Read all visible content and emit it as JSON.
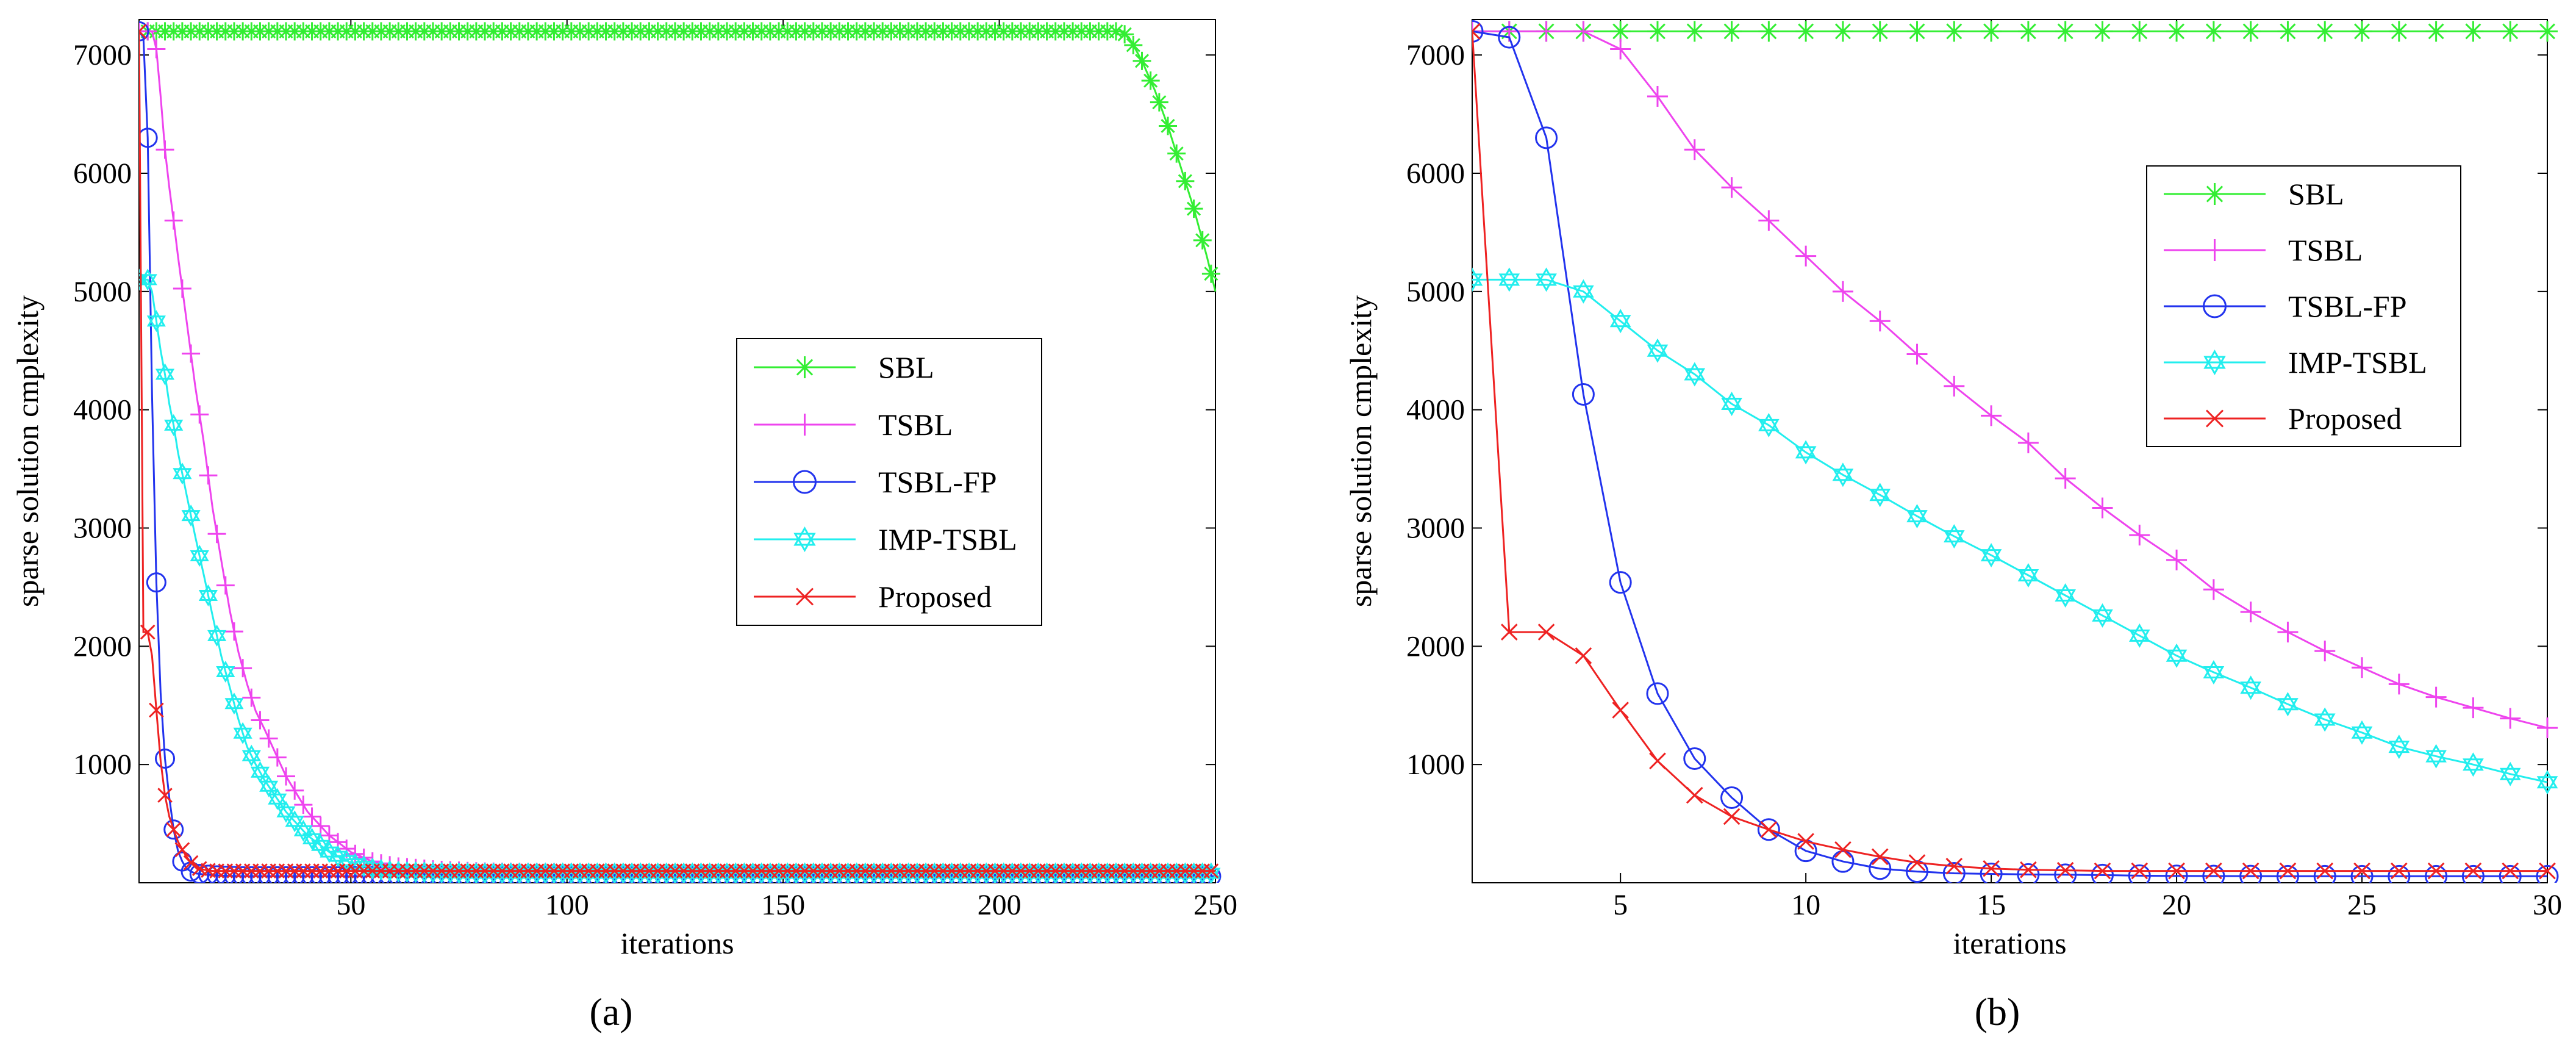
{
  "chart_data": [
    {
      "type": "line",
      "panel_label": "(a)",
      "xlabel": "iterations",
      "ylabel": "sparse solution cmplexity",
      "xlim": [
        1,
        250
      ],
      "ylim": [
        0,
        7300
      ],
      "xticks": [
        50,
        100,
        150,
        200,
        250
      ],
      "yticks": [
        1000,
        2000,
        3000,
        4000,
        5000,
        6000,
        7000
      ],
      "xtick_labels": [
        "50",
        "100",
        "150",
        "200",
        "250"
      ],
      "ytick_labels": [
        "1000",
        "2000",
        "3000",
        "4000",
        "5000",
        "6000",
        "7000"
      ],
      "legend_position": "center-right",
      "grid": false,
      "series": [
        {
          "name": "SBL",
          "color": "#33ee33",
          "marker": "asterisk",
          "x": [
            1,
            228,
            230,
            233,
            236,
            239,
            242,
            245,
            248,
            250
          ],
          "y": [
            7200,
            7200,
            7150,
            6950,
            6700,
            6400,
            6050,
            5700,
            5300,
            5000
          ]
        },
        {
          "name": "TSBL",
          "color": "#ee44ee",
          "marker": "plus",
          "x": [
            1,
            3,
            4,
            5,
            6,
            7,
            8,
            9,
            10,
            12,
            14,
            16,
            18,
            20,
            22,
            24,
            26,
            28,
            30,
            35,
            40,
            45,
            50,
            55,
            60,
            70,
            80,
            100,
            150,
            200,
            250
          ],
          "y": [
            7200,
            7200,
            7200,
            7050,
            6650,
            6200,
            5880,
            5600,
            5300,
            4750,
            4200,
            3720,
            3170,
            2730,
            2300,
            1950,
            1680,
            1450,
            1300,
            900,
            600,
            400,
            260,
            180,
            140,
            110,
            95,
            85,
            80,
            80,
            80
          ]
        },
        {
          "name": "TSBL-FP",
          "color": "#2233ee",
          "marker": "circle",
          "x": [
            1,
            2,
            3,
            4,
            5,
            6,
            7,
            8,
            9,
            10,
            11,
            12,
            13,
            14,
            15,
            16,
            18,
            20,
            25,
            30,
            40,
            50,
            100,
            150,
            200,
            250
          ],
          "y": [
            7200,
            7150,
            6300,
            4130,
            2540,
            1600,
            1050,
            720,
            450,
            270,
            180,
            120,
            95,
            80,
            75,
            70,
            65,
            60,
            55,
            55,
            55,
            55,
            55,
            55,
            55,
            55
          ]
        },
        {
          "name": "IMP-TSBL",
          "color": "#22eeee",
          "marker": "hexagram",
          "x": [
            1,
            2,
            3,
            4,
            5,
            6,
            7,
            8,
            9,
            10,
            12,
            14,
            16,
            18,
            20,
            22,
            24,
            26,
            28,
            30,
            35,
            40,
            45,
            50,
            55,
            60,
            70,
            80,
            100,
            150,
            200,
            250
          ],
          "y": [
            5100,
            5100,
            5100,
            5000,
            4750,
            4500,
            4300,
            4050,
            3870,
            3640,
            3280,
            2930,
            2600,
            2260,
            1920,
            1650,
            1380,
            1150,
            1000,
            870,
            600,
            400,
            260,
            170,
            120,
            95,
            85,
            80,
            80,
            80,
            80,
            80
          ]
        },
        {
          "name": "Proposed",
          "color": "#ee2222",
          "marker": "x",
          "x": [
            1,
            2,
            3,
            4,
            5,
            6,
            7,
            8,
            9,
            10,
            11,
            12,
            13,
            14,
            15,
            16,
            18,
            20,
            25,
            30,
            40,
            50,
            100,
            150,
            200,
            250
          ],
          "y": [
            7200,
            2120,
            2120,
            1920,
            1460,
            1030,
            740,
            560,
            450,
            350,
            280,
            220,
            170,
            140,
            120,
            110,
            100,
            100,
            100,
            100,
            100,
            100,
            100,
            100,
            100,
            100
          ]
        }
      ]
    },
    {
      "type": "line",
      "panel_label": "(b)",
      "xlabel": "iterations",
      "ylabel": "sparse solution cmplexity",
      "xlim": [
        1,
        30
      ],
      "ylim": [
        0,
        7300
      ],
      "xticks": [
        5,
        10,
        15,
        20,
        25,
        30
      ],
      "yticks": [
        1000,
        2000,
        3000,
        4000,
        5000,
        6000,
        7000
      ],
      "xtick_labels": [
        "5",
        "10",
        "15",
        "20",
        "25",
        "30"
      ],
      "ytick_labels": [
        "1000",
        "2000",
        "3000",
        "4000",
        "5000",
        "6000",
        "7000"
      ],
      "legend_position": "top-right",
      "grid": false,
      "series": [
        {
          "name": "SBL",
          "color": "#33ee33",
          "marker": "asterisk",
          "x": [
            1,
            2,
            3,
            4,
            5,
            6,
            7,
            8,
            9,
            10,
            11,
            12,
            13,
            14,
            15,
            16,
            17,
            18,
            19,
            20,
            21,
            22,
            23,
            24,
            25,
            26,
            27,
            28,
            29,
            30
          ],
          "y": [
            7200,
            7200,
            7200,
            7200,
            7200,
            7200,
            7200,
            7200,
            7200,
            7200,
            7200,
            7200,
            7200,
            7200,
            7200,
            7200,
            7200,
            7200,
            7200,
            7200,
            7200,
            7200,
            7200,
            7200,
            7200,
            7200,
            7200,
            7200,
            7200,
            7200
          ]
        },
        {
          "name": "TSBL",
          "color": "#ee44ee",
          "marker": "plus",
          "x": [
            1,
            2,
            3,
            4,
            5,
            6,
            7,
            8,
            9,
            10,
            11,
            12,
            13,
            14,
            15,
            16,
            17,
            18,
            19,
            20,
            21,
            22,
            23,
            24,
            25,
            26,
            27,
            28,
            29,
            30
          ],
          "y": [
            7200,
            7200,
            7200,
            7200,
            7050,
            6650,
            6200,
            5880,
            5600,
            5300,
            5000,
            4750,
            4470,
            4200,
            3950,
            3720,
            3420,
            3170,
            2940,
            2730,
            2480,
            2290,
            2120,
            1960,
            1820,
            1680,
            1570,
            1480,
            1390,
            1310
          ]
        },
        {
          "name": "TSBL-FP",
          "color": "#2233ee",
          "marker": "circle",
          "x": [
            1,
            2,
            3,
            4,
            5,
            6,
            7,
            8,
            9,
            10,
            11,
            12,
            13,
            14,
            15,
            16,
            17,
            18,
            19,
            20,
            21,
            22,
            23,
            24,
            25,
            26,
            27,
            28,
            29,
            30
          ],
          "y": [
            7200,
            7150,
            6300,
            4130,
            2540,
            1600,
            1050,
            720,
            450,
            270,
            180,
            120,
            95,
            80,
            75,
            70,
            68,
            65,
            60,
            58,
            57,
            56,
            55,
            55,
            55,
            55,
            55,
            55,
            55,
            55
          ]
        },
        {
          "name": "IMP-TSBL",
          "color": "#22eeee",
          "marker": "hexagram",
          "x": [
            1,
            2,
            3,
            4,
            5,
            6,
            7,
            8,
            9,
            10,
            11,
            12,
            13,
            14,
            15,
            16,
            17,
            18,
            19,
            20,
            21,
            22,
            23,
            24,
            25,
            26,
            27,
            28,
            29,
            30
          ],
          "y": [
            5100,
            5100,
            5100,
            5000,
            4750,
            4500,
            4300,
            4050,
            3870,
            3640,
            3450,
            3280,
            3100,
            2930,
            2770,
            2600,
            2430,
            2260,
            2090,
            1920,
            1780,
            1650,
            1510,
            1380,
            1270,
            1150,
            1070,
            1000,
            920,
            850
          ]
        },
        {
          "name": "Proposed",
          "color": "#ee2222",
          "marker": "x",
          "x": [
            1,
            2,
            3,
            4,
            5,
            6,
            7,
            8,
            9,
            10,
            11,
            12,
            13,
            14,
            15,
            16,
            17,
            18,
            19,
            20,
            21,
            22,
            23,
            24,
            25,
            26,
            27,
            28,
            29,
            30
          ],
          "y": [
            7200,
            2120,
            2120,
            1920,
            1460,
            1030,
            740,
            560,
            450,
            350,
            280,
            220,
            170,
            140,
            120,
            110,
            105,
            100,
            100,
            100,
            100,
            100,
            100,
            100,
            100,
            100,
            100,
            100,
            100,
            100
          ]
        }
      ]
    }
  ]
}
